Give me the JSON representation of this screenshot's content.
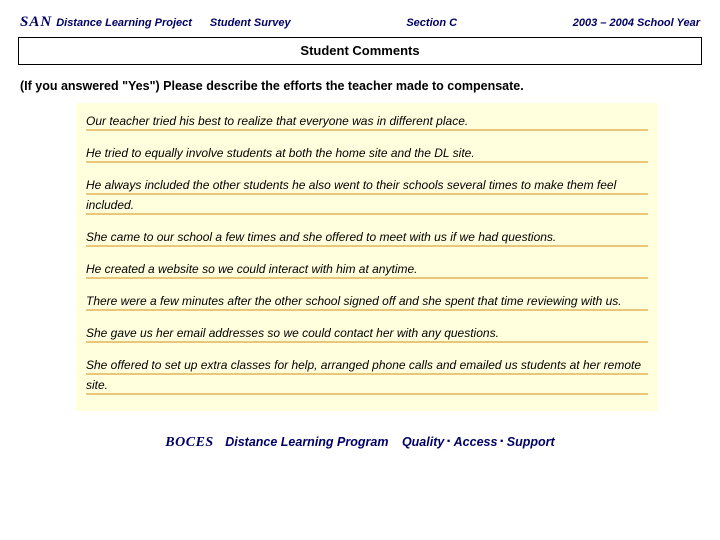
{
  "header": {
    "san": "SAN",
    "project": "Distance Learning Project",
    "survey": "Student Survey",
    "section": "Section C",
    "year": "2003 – 2004 School Year"
  },
  "title": "Student Comments",
  "prompt": "(If you answered \"Yes\") Please describe the efforts the teacher made to compensate.",
  "comments": [
    "Our teacher tried his best to realize that everyone was in different place.",
    "He tried to equally involve students at both the home site and the DL site.",
    "He always included the other students he also went to their schools several times to make them feel included.",
    "She came to our school a few times and she offered to meet with us if we had questions.",
    "He created a website so we could interact with him at anytime.",
    "There were a few minutes after the other school signed off and she spent that time reviewing with us.",
    "She gave us her email addresses so we could contact her with any questions.",
    "She offered to set up extra classes for help, arranged phone calls and emailed us students at her remote site."
  ],
  "footer": {
    "boces": "BOCES",
    "program": "Distance Learning Program",
    "tag1": "Quality",
    "tag2": "Access",
    "tag3": "Support"
  },
  "colors": {
    "header_text": "#000066",
    "comments_bg": "#ffffdd",
    "rule": "#e8c878",
    "page_bg": "#ffffff"
  }
}
